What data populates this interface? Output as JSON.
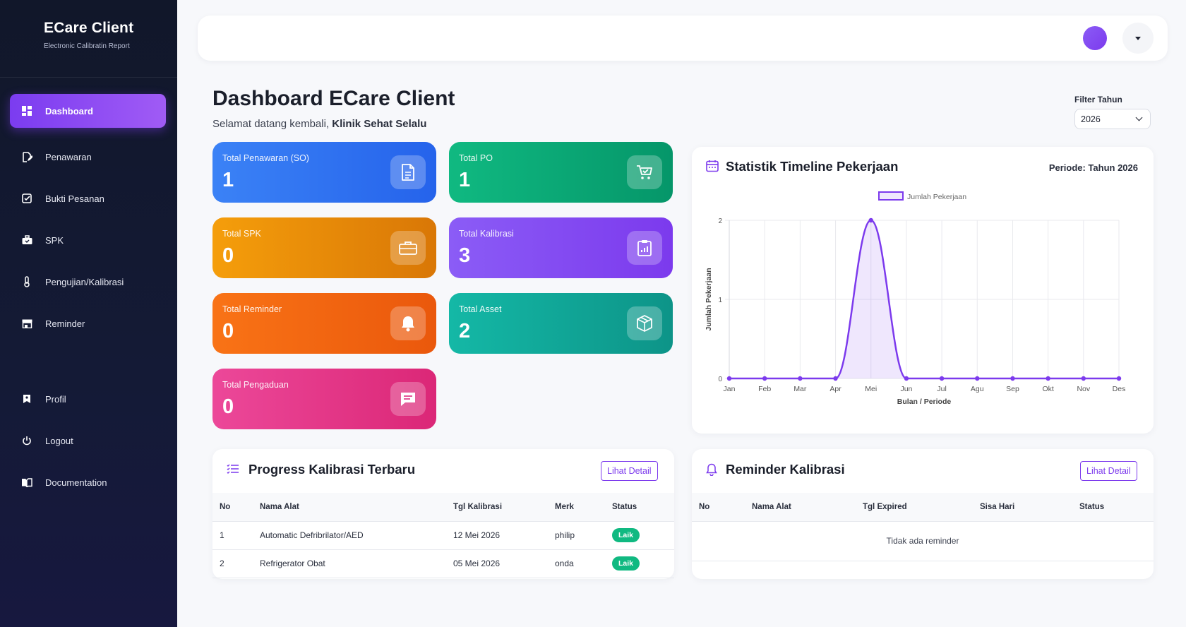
{
  "brand": {
    "title": "ECare Client",
    "subtitle": "Electronic Calibratin Report"
  },
  "nav": [
    {
      "label": "Dashboard",
      "icon": "dashboard-icon"
    },
    {
      "label": "Penawaran",
      "icon": "edit-doc-icon"
    },
    {
      "label": "Bukti Pesanan",
      "icon": "checkbox-icon"
    },
    {
      "label": "SPK",
      "icon": "briefcase-icon"
    },
    {
      "label": "Pengujian/Kalibrasi",
      "icon": "thermometer-icon"
    },
    {
      "label": "Reminder",
      "icon": "store-icon"
    },
    {
      "label": "Profil",
      "icon": "bookmark-icon"
    },
    {
      "label": "Logout",
      "icon": "power-icon"
    },
    {
      "label": "Documentation",
      "icon": "book-icon"
    }
  ],
  "header": {
    "title": "Dashboard ECare Client",
    "welcome_prefix": "Selamat datang kembali, ",
    "client_name": "Klinik Sehat Selalu",
    "filter_label": "Filter Tahun",
    "filter_value": "2026"
  },
  "cards": [
    {
      "label": "Total Penawaran (SO)",
      "value": "1",
      "icon": "document-icon",
      "color": "#3b82f6"
    },
    {
      "label": "Total PO",
      "value": "1",
      "icon": "cart-icon",
      "color": "#10b981"
    },
    {
      "label": "Total SPK",
      "value": "0",
      "icon": "briefcase-icon",
      "color": "#f59e0b"
    },
    {
      "label": "Total Kalibrasi",
      "value": "3",
      "icon": "clipboard-chart-icon",
      "color": "#8b5cf6"
    },
    {
      "label": "Total Reminder",
      "value": "0",
      "icon": "bell-icon",
      "color": "#f97316"
    },
    {
      "label": "Total Asset",
      "value": "2",
      "icon": "box-icon",
      "color": "#14b8a6"
    },
    {
      "label": "Total Pengaduan",
      "value": "0",
      "icon": "chat-icon",
      "color": "#ec4899"
    }
  ],
  "timeline": {
    "title": "Statistik Timeline Pekerjaan",
    "periode": "Periode: Tahun 2026"
  },
  "chart_data": {
    "type": "area",
    "categories": [
      "Jan",
      "Feb",
      "Mar",
      "Apr",
      "Mei",
      "Jun",
      "Jul",
      "Agu",
      "Sep",
      "Okt",
      "Nov",
      "Des"
    ],
    "series": [
      {
        "name": "Jumlah Pekerjaan",
        "values": [
          0,
          0,
          0,
          0,
          2,
          0,
          0,
          0,
          0,
          0,
          0,
          0
        ],
        "color": "#7c3aed"
      }
    ],
    "xlabel": "Bulan / Periode",
    "ylabel": "Jumlah Pekerjaan",
    "ylim": [
      0,
      2
    ],
    "yticks": [
      "0",
      "1",
      "2"
    ],
    "grid": true,
    "legend": "top"
  },
  "progress": {
    "title": "Progress Kalibrasi Terbaru",
    "button": "Lihat Detail",
    "columns": [
      "No",
      "Nama Alat",
      "Tgl Kalibrasi",
      "Merk",
      "Status"
    ],
    "rows": [
      {
        "no": "1",
        "nama": "Automatic Defribrilator/AED",
        "tgl": "12 Mei 2026",
        "merk": "philip",
        "status": "Laik"
      },
      {
        "no": "2",
        "nama": "Refrigerator Obat",
        "tgl": "05 Mei 2026",
        "merk": "onda",
        "status": "Laik"
      }
    ]
  },
  "reminder": {
    "title": "Reminder Kalibrasi",
    "button": "Lihat Detail",
    "columns": [
      "No",
      "Nama Alat",
      "Tgl Expired",
      "Sisa Hari",
      "Status"
    ],
    "empty": "Tidak ada reminder"
  }
}
